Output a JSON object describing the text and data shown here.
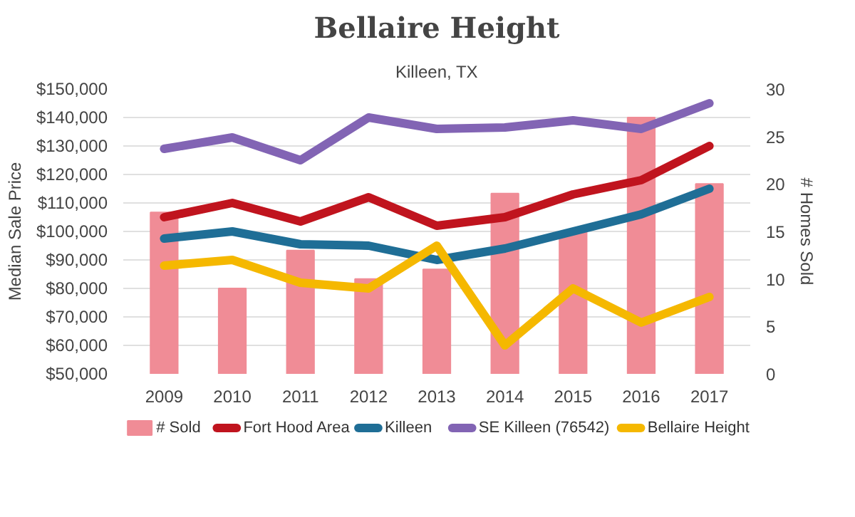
{
  "chart_data": {
    "type": "line",
    "title": "Bellaire Height",
    "subtitle": "Killeen, TX",
    "ylabel": "Median Sale Price",
    "y2label": "# Homes Sold",
    "categories": [
      "2009",
      "2010",
      "2011",
      "2012",
      "2013",
      "2014",
      "2015",
      "2016",
      "2017"
    ],
    "series": [
      {
        "name": "# Sold",
        "type": "bar",
        "axis": "y2",
        "color": "#f08c96",
        "values": [
          17,
          9,
          13,
          10,
          11,
          19,
          15,
          27,
          20
        ]
      },
      {
        "name": "Fort Hood Area",
        "color": "#c0141e",
        "values": [
          105000,
          110000,
          103500,
          112000,
          102000,
          105000,
          113000,
          118000,
          130000
        ]
      },
      {
        "name": "Killeen",
        "color": "#1f6e96",
        "values": [
          97500,
          100000,
          95500,
          95000,
          90000,
          94000,
          100000,
          106000,
          115000
        ]
      },
      {
        "name": "SE Killeen (76542)",
        "color": "#8264b4",
        "values": [
          129000,
          133000,
          125000,
          140000,
          136000,
          136500,
          139000,
          136000,
          145000
        ]
      },
      {
        "name": "Bellaire Height",
        "color": "#f5b800",
        "values": [
          88000,
          90000,
          82000,
          80000,
          95000,
          60000,
          80000,
          68000,
          77000
        ]
      }
    ],
    "ylim": [
      50000,
      150000
    ],
    "yticks": [
      {
        "value": 50000,
        "label": "$50,000"
      },
      {
        "value": 60000,
        "label": "$60,000"
      },
      {
        "value": 70000,
        "label": "$70,000"
      },
      {
        "value": 80000,
        "label": "$80,000"
      },
      {
        "value": 90000,
        "label": "$90,000"
      },
      {
        "value": 100000,
        "label": "$100,000"
      },
      {
        "value": 110000,
        "label": "$110,000"
      },
      {
        "value": 120000,
        "label": "$120,000"
      },
      {
        "value": 130000,
        "label": "$130,000"
      },
      {
        "value": 140000,
        "label": "$140,000"
      },
      {
        "value": 150000,
        "label": "$150,000"
      }
    ],
    "y2lim": [
      0,
      30
    ],
    "y2ticks": [
      0,
      5,
      10,
      15,
      20,
      25,
      30
    ],
    "grid": "y",
    "legend": "bottom",
    "marker": "none",
    "line_style": "solid"
  }
}
